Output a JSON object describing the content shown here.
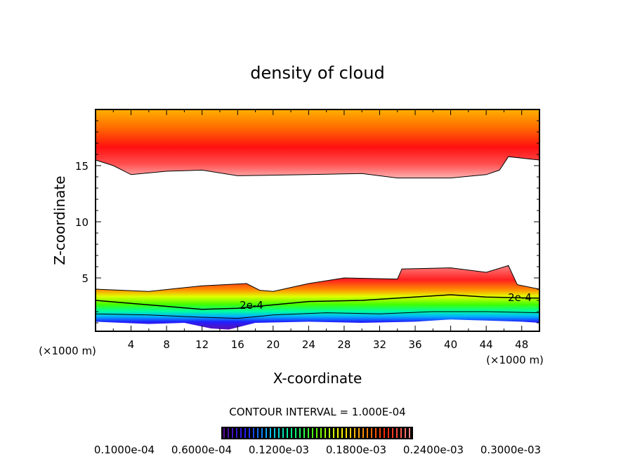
{
  "chart_data": {
    "type": "heatmap",
    "subtype": "filled-contour",
    "title": "density of cloud",
    "xlabel": "X-coordinate",
    "ylabel": "Z-coordinate",
    "x_unit_label": "(×1000 m)",
    "y_unit_label": "(×1000 m)",
    "xlim": [
      0,
      50
    ],
    "ylim": [
      0.25,
      20
    ],
    "xticks": [
      4,
      8,
      12,
      16,
      20,
      24,
      28,
      32,
      36,
      40,
      44,
      48
    ],
    "yticks": [
      5,
      10,
      15
    ],
    "contour_interval_label": "CONTOUR INTERVAL = 1.000E-04",
    "contour_labels": [
      "2e-4",
      "2e-4"
    ],
    "colorbar": {
      "colors": [
        "#5a0aa0",
        "#2020ff",
        "#00c0ff",
        "#00ff80",
        "#60ff00",
        "#ffff00",
        "#ff9000",
        "#ff2000",
        "#ff8080"
      ],
      "labels": [
        "0.1000e-04",
        "0.6000e-04",
        "0.1200e-03",
        "0.1800e-03",
        "0.2400e-03",
        "0.3000e-03"
      ]
    },
    "regions": {
      "upper_cloud_base": {
        "x": [
          0,
          2,
          4,
          8,
          12,
          16,
          24,
          30,
          34,
          40,
          44,
          45.5,
          46.5,
          50
        ],
        "z": [
          15.5,
          15,
          14.2,
          14.5,
          14.6,
          14.1,
          14.2,
          14.3,
          13.9,
          13.9,
          14.2,
          14.6,
          15.8,
          15.5
        ]
      },
      "lower_cloud_top": {
        "x": [
          0,
          6,
          12,
          17,
          18.5,
          20,
          24,
          28,
          34,
          34.5,
          40,
          44,
          46.5,
          47.5,
          50
        ],
        "z": [
          4,
          3.8,
          4.3,
          4.5,
          3.9,
          3.8,
          4.5,
          5,
          4.9,
          5.8,
          5.9,
          5.5,
          6.1,
          4.4,
          4
        ]
      },
      "lower_cloud_bottom": {
        "x": [
          0,
          6,
          10,
          13,
          15,
          18,
          24,
          30,
          36,
          40,
          44,
          48,
          50
        ],
        "z": [
          1.1,
          0.9,
          1,
          0.5,
          0.4,
          1,
          1.1,
          1,
          1.1,
          1.3,
          1.2,
          1.1,
          1
        ]
      },
      "contour_2e-4": {
        "x": [
          0,
          6,
          12,
          16,
          20,
          24,
          30,
          34,
          40,
          44,
          50
        ],
        "z": [
          3,
          2.6,
          2.2,
          2.3,
          2.6,
          2.9,
          3,
          3.2,
          3.5,
          3.3,
          3.2
        ]
      },
      "contour_1e-4": {
        "x": [
          0,
          6,
          12,
          16,
          20,
          26,
          32,
          38,
          44,
          50
        ],
        "z": [
          1.8,
          1.7,
          1.5,
          1.4,
          1.7,
          1.9,
          1.8,
          2,
          2,
          1.9
        ]
      }
    }
  }
}
